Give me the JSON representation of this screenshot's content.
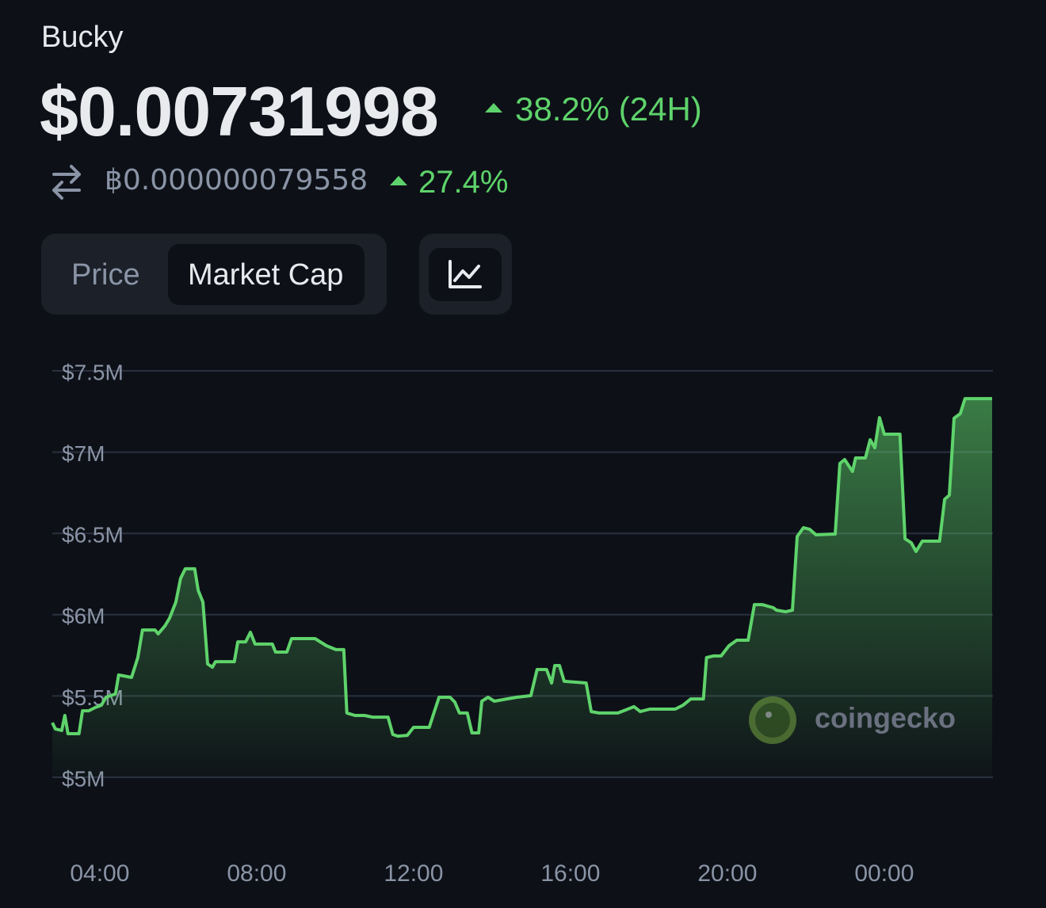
{
  "header": {
    "name": "Bucky",
    "price": "$0.00731998",
    "change_24h": "38.2% (24H)",
    "btc_price": "฿0.000000079558",
    "btc_change": "27.4%"
  },
  "tabs": [
    "Price",
    "Market Cap"
  ],
  "active_tab": 1,
  "watermark": "coingecko",
  "chart_data": {
    "type": "area",
    "color": "#5fd36b",
    "grid": true,
    "x": [
      2.79,
      2.87,
      3.03,
      3.11,
      3.19,
      3.47,
      3.56,
      3.72,
      3.88,
      4.04,
      4.16,
      4.4,
      4.48,
      4.81,
      4.97,
      5.09,
      5.41,
      5.49,
      5.66,
      5.78,
      5.94,
      6.06,
      6.18,
      6.42,
      6.51,
      6.63,
      6.75,
      6.87,
      6.95,
      7.43,
      7.52,
      7.72,
      7.84,
      7.96,
      8.4,
      8.48,
      8.77,
      8.89,
      9.49,
      9.78,
      10.02,
      10.22,
      10.3,
      10.51,
      10.75,
      10.95,
      11.35,
      11.47,
      11.6,
      11.84,
      12.0,
      12.4,
      12.53,
      12.65,
      12.93,
      13.05,
      13.17,
      13.37,
      13.49,
      13.66,
      13.74,
      13.9,
      14.06,
      14.38,
      14.63,
      14.99,
      15.15,
      15.39,
      15.52,
      15.6,
      15.72,
      15.84,
      16.4,
      16.53,
      16.73,
      17.21,
      17.41,
      17.62,
      17.78,
      18.02,
      18.67,
      18.87,
      19.07,
      19.39,
      19.47,
      19.64,
      19.84,
      20.04,
      20.24,
      20.53,
      20.69,
      20.89,
      21.17,
      21.25,
      21.49,
      21.66,
      21.78,
      21.94,
      22.1,
      22.26,
      22.75,
      22.87,
      22.99,
      23.19,
      23.27,
      23.52,
      23.64,
      23.76,
      23.88,
      24.0,
      24.4,
      24.53,
      24.69,
      24.81,
      24.97,
      25.41,
      25.54,
      25.66,
      25.78,
      25.94,
      26.06,
      26.75
    ],
    "values": [
      5336000,
      5297000,
      5288000,
      5380000,
      5268000,
      5268000,
      5409000,
      5409000,
      5429000,
      5443000,
      5492000,
      5512000,
      5629000,
      5614000,
      5736000,
      5906000,
      5906000,
      5882000,
      5931000,
      5979000,
      6077000,
      6223000,
      6282000,
      6282000,
      6150000,
      6077000,
      5697000,
      5677000,
      5711000,
      5711000,
      5833000,
      5833000,
      5892000,
      5819000,
      5819000,
      5770000,
      5770000,
      5853000,
      5853000,
      5809000,
      5785000,
      5785000,
      5395000,
      5380000,
      5380000,
      5370000,
      5370000,
      5263000,
      5253000,
      5258000,
      5307000,
      5307000,
      5404000,
      5492000,
      5492000,
      5463000,
      5395000,
      5395000,
      5273000,
      5273000,
      5468000,
      5492000,
      5468000,
      5482000,
      5492000,
      5502000,
      5663000,
      5663000,
      5580000,
      5687000,
      5687000,
      5590000,
      5580000,
      5404000,
      5395000,
      5395000,
      5414000,
      5434000,
      5404000,
      5419000,
      5419000,
      5443000,
      5482000,
      5482000,
      5736000,
      5746000,
      5746000,
      5809000,
      5843000,
      5843000,
      6062000,
      6062000,
      6043000,
      6028000,
      6018000,
      6028000,
      6481000,
      6535000,
      6525000,
      6491000,
      6496000,
      6930000,
      6954000,
      6881000,
      6964000,
      6964000,
      7076000,
      7027000,
      7212000,
      7110000,
      7110000,
      6467000,
      6442000,
      6389000,
      6452000,
      6452000,
      6710000,
      6735000,
      7208000,
      7237000,
      7329000,
      7329000
    ],
    "xlim": [
      2.79,
      26.75
    ],
    "xticks": [
      {
        "value": 4,
        "label": "04:00"
      },
      {
        "value": 8,
        "label": "08:00"
      },
      {
        "value": 12,
        "label": "12:00"
      },
      {
        "value": 16,
        "label": "16:00"
      },
      {
        "value": 20,
        "label": "20:00"
      },
      {
        "value": 24,
        "label": "00:00"
      }
    ],
    "ylim": [
      5000000,
      7500000
    ],
    "yticks": [
      {
        "value": 5000000,
        "label": "$5M"
      },
      {
        "value": 5500000,
        "label": "$5.5M"
      },
      {
        "value": 6000000,
        "label": "$6M"
      },
      {
        "value": 6500000,
        "label": "$6.5M"
      },
      {
        "value": 7000000,
        "label": "$7M"
      },
      {
        "value": 7500000,
        "label": "$7.5M"
      }
    ]
  }
}
